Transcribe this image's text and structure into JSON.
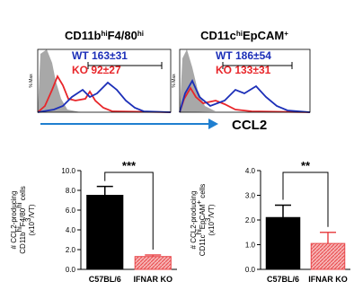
{
  "histograms": [
    {
      "title": [
        "CD11b",
        "hi",
        "F4/80",
        "hi"
      ],
      "ylabel": "% Max",
      "wt": "WT 163±31",
      "ko": "KO  92±27"
    },
    {
      "title": [
        "CD11c",
        "hi",
        "EpCAM",
        "+"
      ],
      "ylabel": "% Max",
      "wt": "WT 186±54",
      "ko": "KO  133±31"
    }
  ],
  "x_label": "CCL2",
  "chart_data": [
    {
      "type": "bar",
      "categories": [
        "C57BL/6",
        "IFNAR KO"
      ],
      "values": [
        7.5,
        1.3
      ],
      "errors": [
        0.9,
        0.15
      ],
      "colors": [
        "#000000",
        "#e8474a"
      ],
      "significance": "***",
      "ylabel": [
        [
          "# CCL2-producing"
        ],
        [
          "CD11b",
          "hi",
          "F4/80",
          "hi",
          " cells"
        ],
        [
          "(x10",
          "3",
          "/VT)"
        ]
      ],
      "ylim": [
        0,
        10
      ],
      "yticks": [
        {
          "value": 0,
          "label": "0.0"
        },
        {
          "value": 2,
          "label": "2.0"
        },
        {
          "value": 4,
          "label": "4.0"
        },
        {
          "value": 6,
          "label": "6.0"
        },
        {
          "value": 8,
          "label": "8.0"
        },
        {
          "value": 10,
          "label": "10.0"
        }
      ]
    },
    {
      "type": "bar",
      "categories": [
        "C57BL/6",
        "IFNAR KO"
      ],
      "values": [
        2.1,
        1.05
      ],
      "errors": [
        0.5,
        0.45
      ],
      "colors": [
        "#000000",
        "#e8474a"
      ],
      "significance": "**",
      "ylabel": [
        [
          "# CCL2-producing"
        ],
        [
          "CD11c",
          "hi",
          "EpCAM",
          "+",
          " cells"
        ],
        [
          "(x10",
          "3",
          "/VT)"
        ]
      ],
      "ylim": [
        0,
        4
      ],
      "yticks": [
        {
          "value": 0,
          "label": "0.0"
        },
        {
          "value": 1,
          "label": "1.0"
        },
        {
          "value": 2,
          "label": "2.0"
        },
        {
          "value": 3,
          "label": "3.0"
        },
        {
          "value": 4,
          "label": "4.0"
        }
      ]
    }
  ]
}
